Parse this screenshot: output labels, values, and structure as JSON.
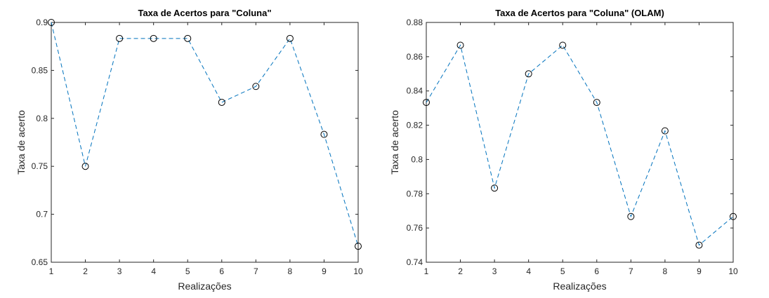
{
  "chart_data": [
    {
      "type": "line",
      "title": "Taxa de Acertos para \"Coluna\"",
      "xlabel": "Realizações",
      "ylabel": "Taxa de acerto",
      "x": [
        1,
        2,
        3,
        4,
        5,
        6,
        7,
        8,
        9,
        10
      ],
      "series": [
        {
          "values": [
            0.9,
            0.75,
            0.8833,
            0.8833,
            0.8833,
            0.8167,
            0.8333,
            0.8833,
            0.7833,
            0.6667
          ]
        }
      ],
      "xlim": [
        1,
        10
      ],
      "ylim": [
        0.65,
        0.9
      ],
      "xticks": [
        "1",
        "2",
        "3",
        "4",
        "5",
        "6",
        "7",
        "8",
        "9",
        "10"
      ],
      "yticks": [
        0.65,
        0.7,
        0.75,
        0.8,
        0.85,
        0.9
      ],
      "ytick_labels": [
        "0.65",
        "0.7",
        "0.75",
        "0.8",
        "0.85",
        "0.9"
      ],
      "line_style": "dashed",
      "marker": "circle",
      "line_color": "#0072BD",
      "marker_color": "#000000",
      "grid": false
    },
    {
      "type": "line",
      "title": "Taxa de Acertos para \"Coluna\" (OLAM)",
      "xlabel": "Realizações",
      "ylabel": "Taxa de acerto",
      "x": [
        1,
        2,
        3,
        4,
        5,
        6,
        7,
        8,
        9,
        10
      ],
      "series": [
        {
          "values": [
            0.8333,
            0.8667,
            0.7833,
            0.85,
            0.8667,
            0.8333,
            0.7667,
            0.8167,
            0.75,
            0.7667
          ]
        }
      ],
      "xlim": [
        1,
        10
      ],
      "ylim": [
        0.74,
        0.88
      ],
      "xticks": [
        "1",
        "2",
        "3",
        "4",
        "5",
        "6",
        "7",
        "8",
        "9",
        "10"
      ],
      "yticks": [
        0.74,
        0.76,
        0.78,
        0.8,
        0.82,
        0.84,
        0.86,
        0.88
      ],
      "ytick_labels": [
        "0.74",
        "0.76",
        "0.78",
        "0.8",
        "0.82",
        "0.84",
        "0.86",
        "0.88"
      ],
      "line_style": "dashed",
      "marker": "circle",
      "line_color": "#0072BD",
      "marker_color": "#000000",
      "grid": false
    }
  ]
}
